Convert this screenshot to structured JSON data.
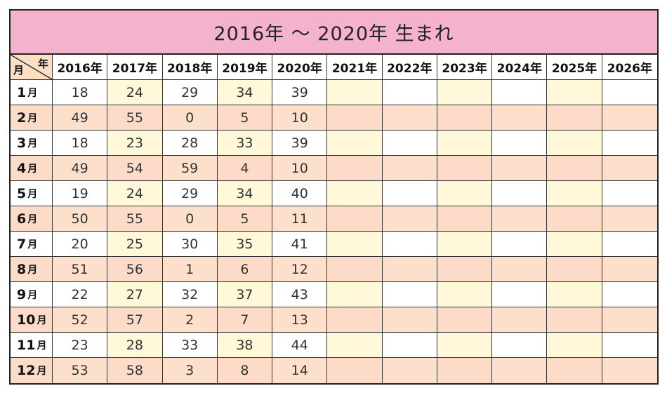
{
  "title": "2016年 ～ 2020年 生まれ",
  "corner": {
    "year": "年",
    "month": "月"
  },
  "columns": [
    "2016年",
    "2017年",
    "2018年",
    "2019年",
    "2020年",
    "2021年",
    "2022年",
    "2023年",
    "2024年",
    "2025年",
    "2026年"
  ],
  "rows": [
    {
      "month": "1",
      "unit": "月",
      "values": [
        "18",
        "24",
        "29",
        "34",
        "39",
        "",
        "",
        "",
        "",
        "",
        ""
      ]
    },
    {
      "month": "2",
      "unit": "月",
      "values": [
        "49",
        "55",
        "0",
        "5",
        "10",
        "",
        "",
        "",
        "",
        "",
        ""
      ]
    },
    {
      "month": "3",
      "unit": "月",
      "values": [
        "18",
        "23",
        "28",
        "33",
        "39",
        "",
        "",
        "",
        "",
        "",
        ""
      ]
    },
    {
      "month": "4",
      "unit": "月",
      "values": [
        "49",
        "54",
        "59",
        "4",
        "10",
        "",
        "",
        "",
        "",
        "",
        ""
      ]
    },
    {
      "month": "5",
      "unit": "月",
      "values": [
        "19",
        "24",
        "29",
        "34",
        "40",
        "",
        "",
        "",
        "",
        "",
        ""
      ]
    },
    {
      "month": "6",
      "unit": "月",
      "values": [
        "50",
        "55",
        "0",
        "5",
        "11",
        "",
        "",
        "",
        "",
        "",
        ""
      ]
    },
    {
      "month": "7",
      "unit": "月",
      "values": [
        "20",
        "25",
        "30",
        "35",
        "41",
        "",
        "",
        "",
        "",
        "",
        ""
      ]
    },
    {
      "month": "8",
      "unit": "月",
      "values": [
        "51",
        "56",
        "1",
        "6",
        "12",
        "",
        "",
        "",
        "",
        "",
        ""
      ]
    },
    {
      "month": "9",
      "unit": "月",
      "values": [
        "22",
        "27",
        "32",
        "37",
        "43",
        "",
        "",
        "",
        "",
        "",
        ""
      ]
    },
    {
      "month": "10",
      "unit": "月",
      "values": [
        "52",
        "57",
        "2",
        "7",
        "13",
        "",
        "",
        "",
        "",
        "",
        ""
      ]
    },
    {
      "month": "11",
      "unit": "月",
      "values": [
        "23",
        "28",
        "33",
        "38",
        "44",
        "",
        "",
        "",
        "",
        "",
        ""
      ]
    },
    {
      "month": "12",
      "unit": "月",
      "values": [
        "53",
        "58",
        "3",
        "8",
        "14",
        "",
        "",
        "",
        "",
        "",
        ""
      ]
    }
  ],
  "colors": {
    "title_bg": "#f5b2cf",
    "odd_row_white": "#ffffff",
    "odd_row_yellow": "#fff9d9",
    "even_row_peach": "#fce0cc",
    "border": "#222222"
  }
}
